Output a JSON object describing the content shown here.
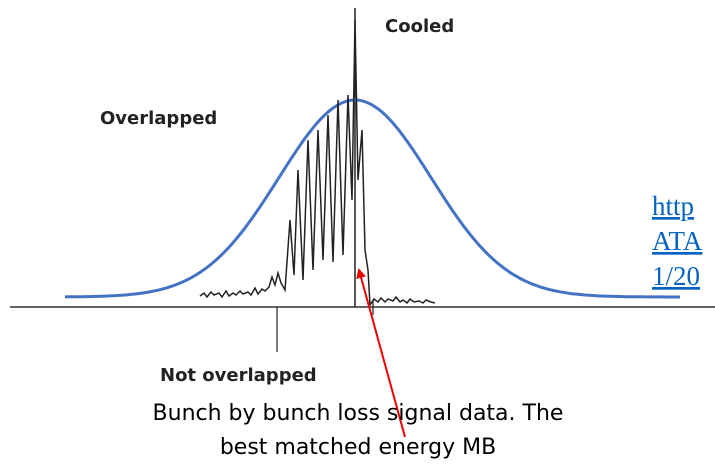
{
  "labels": {
    "cooled": "Cooled",
    "overlapped": "Overlapped",
    "not_overlapped": "Not overlapped"
  },
  "link": {
    "lines": [
      "http",
      "ATA",
      "1/20"
    ]
  },
  "caption": {
    "lines": [
      "Bunch by bunch loss signal data. The",
      "best matched energy MB"
    ]
  }
}
